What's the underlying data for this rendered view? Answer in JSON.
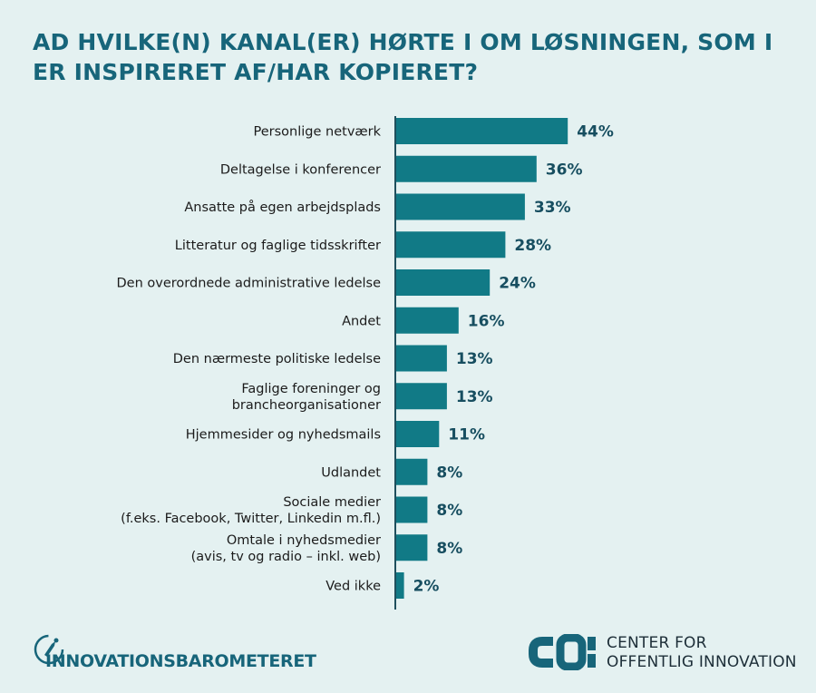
{
  "title": "AD HVILKE(N) KANAL(ER) HØRTE I OM LØSNINGEN, SOM I ER INSPIRERET AF/HAR KOPIERET?",
  "chart_data": {
    "type": "bar",
    "orientation": "horizontal",
    "categories": [
      [
        "Personlige netværk"
      ],
      [
        "Deltagelse i konferencer"
      ],
      [
        "Ansatte på egen arbejdsplads"
      ],
      [
        "Litteratur og faglige tidsskrifter"
      ],
      [
        "Den overordnede administrative ledelse"
      ],
      [
        "Andet"
      ],
      [
        "Den nærmeste politiske ledelse"
      ],
      [
        "Faglige foreninger og",
        "brancheorganisationer"
      ],
      [
        "Hjemmesider og nyhedsmails"
      ],
      [
        "Udlandet"
      ],
      [
        "Sociale medier",
        "(f.eks. Facebook, Twitter, Linkedin m.fl.)"
      ],
      [
        "Omtale i nyhedsmedier",
        "(avis, tv og radio – inkl. web)"
      ],
      [
        "Ved ikke"
      ]
    ],
    "values": [
      44,
      36,
      33,
      28,
      24,
      16,
      13,
      13,
      11,
      8,
      8,
      8,
      2
    ],
    "value_labels": [
      "44%",
      "36%",
      "33%",
      "28%",
      "24%",
      "16%",
      "13%",
      "13%",
      "11%",
      "8%",
      "8%",
      "8%",
      "2%"
    ],
    "unit": "%",
    "colors": {
      "bar": "#117a86",
      "value": "#174e60",
      "title": "#17657a",
      "background": "#e4f1f1"
    }
  },
  "footer": {
    "left_brand": "INNOVATIONSBAROMETERET",
    "right_brand_line1": "CENTER FOR",
    "right_brand_line2": "OFFENTLIG INNOVATION",
    "right_logo_icon": "coi-logo-icon",
    "left_logo_icon": "compass-icon"
  }
}
